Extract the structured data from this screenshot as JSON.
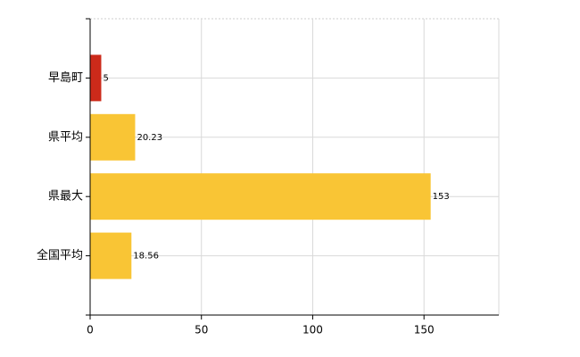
{
  "chart_data": {
    "type": "hbar",
    "categories": [
      "早島町",
      "県平均",
      "県最大",
      "全国平均"
    ],
    "values": [
      5,
      20.23,
      153,
      18.56
    ],
    "colors": [
      "#cc2a1a",
      "#f9c535",
      "#f9c535",
      "#f9c535"
    ],
    "xlim": [
      0,
      183.6
    ],
    "xticks": [
      0,
      50,
      100,
      150
    ],
    "grid": true
  }
}
